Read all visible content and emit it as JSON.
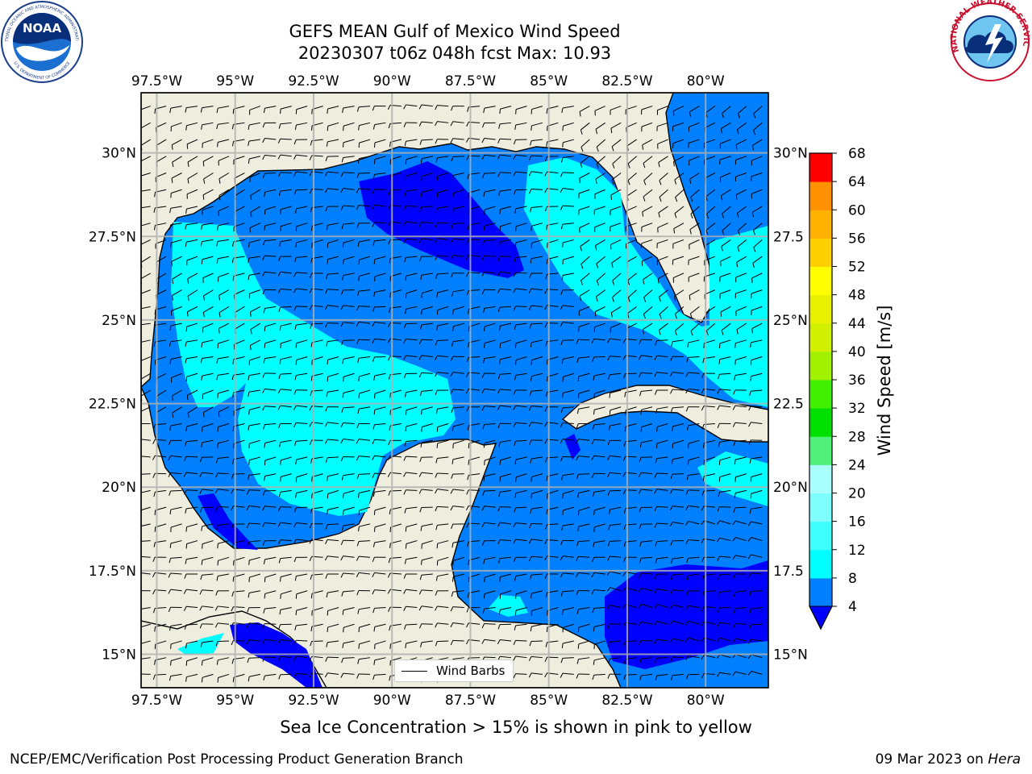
{
  "figure": {
    "title_line1": "GEFS MEAN Gulf of Mexico Wind Speed",
    "title_line2": "20230307 t06z 048h fcst   Max: 10.93",
    "sea_ice_note": "Sea Ice Concentration > 15% is shown in pink to yellow",
    "credit_left": "NCEP/EMC/Verification Post Processing Product Generation Branch",
    "credit_date": "09 Mar 2023 on",
    "credit_machine": "Hera",
    "legend_label": "Wind Barbs"
  },
  "map": {
    "lon_range": [
      -98,
      -78
    ],
    "lat_range": [
      14,
      31.8
    ],
    "lon_ticks": [
      "97.5°W",
      "95°W",
      "92.5°W",
      "90°W",
      "87.5°W",
      "85°W",
      "82.5°W",
      "80°W"
    ],
    "lon_values": [
      -97.5,
      -95,
      -92.5,
      -90,
      -87.5,
      -85,
      -82.5,
      -80
    ],
    "lat_ticks": [
      "30°N",
      "27.5°N",
      "25°N",
      "22.5°N",
      "20°N",
      "17.5°N",
      "15°N"
    ],
    "lat_values": [
      30,
      27.5,
      25,
      22.5,
      20,
      17.5,
      15
    ],
    "lat_ticks_right": [
      "30°N",
      "27.5",
      "25°N",
      "22.5",
      "20°N",
      "17.5",
      "15°N"
    ],
    "land_color": "#efedde",
    "grid": true,
    "barb_spacing_deg": 0.5
  },
  "colorbar": {
    "label": "Wind Speed [m/s]",
    "ticks": [
      "4",
      "8",
      "12",
      "16",
      "20",
      "24",
      "28",
      "32",
      "36",
      "40",
      "44",
      "48",
      "52",
      "56",
      "60",
      "64",
      "68"
    ],
    "colors": [
      "#0000ff",
      "#0080ff",
      "#00ffff",
      "#40ffff",
      "#80ffff",
      "#aaffff",
      "#50f07a",
      "#00e000",
      "#40f000",
      "#a0f000",
      "#d0f000",
      "#e8f000",
      "#ffff00",
      "#ffd000",
      "#ffb000",
      "#ff9000",
      "#ff7000",
      "#ff4000",
      "#ff0000"
    ]
  },
  "logos": {
    "noaa_text": "NOAA",
    "noaa_ring": "NATIONAL OCEANIC AND ATMOSPHERIC ADMINISTRATION",
    "noaa_ring_bottom": "U.S. DEPARTMENT OF COMMERCE",
    "nws_ring": "NATIONAL WEATHER SERVICE"
  }
}
